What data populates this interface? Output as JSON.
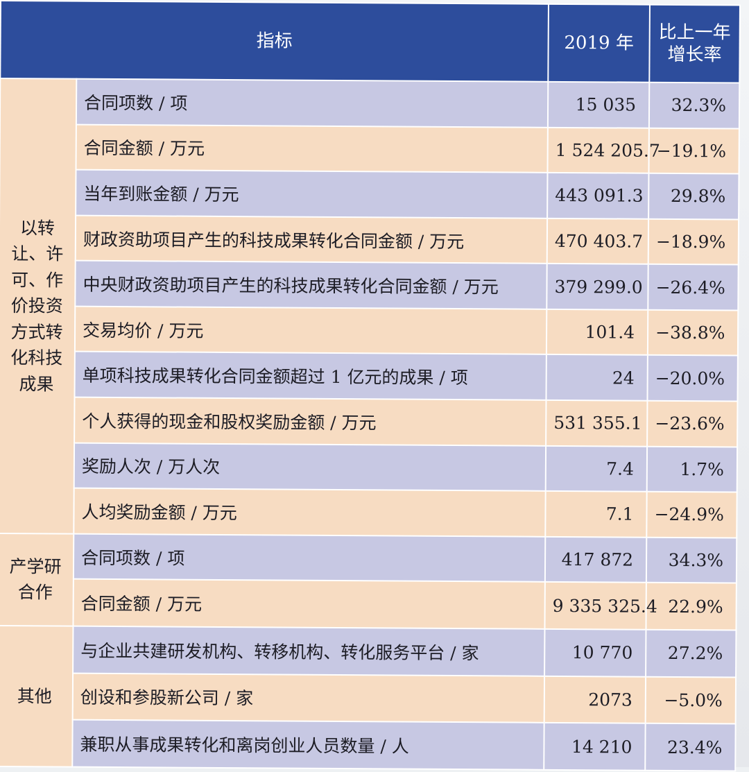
{
  "header": {
    "indicator": "指标",
    "year": "2019 年",
    "growth_line1": "比上一年",
    "growth_line2": "增长率"
  },
  "groups": [
    {
      "category": "以转让、许可、作价投资方式转化科技成果",
      "rows": [
        {
          "indicator": "合同项数 / 项",
          "value": "15 035",
          "growth": "32.3%"
        },
        {
          "indicator": "合同金额 / 万元",
          "value": "1 524 205.7",
          "growth": "−19.1%"
        },
        {
          "indicator": "当年到账金额 / 万元",
          "value": "443 091.3",
          "growth": "29.8%"
        },
        {
          "indicator": "财政资助项目产生的科技成果转化合同金额 / 万元",
          "value": "470 403.7",
          "growth": "−18.9%"
        },
        {
          "indicator": "中央财政资助项目产生的科技成果转化合同金额 / 万元",
          "value": "379 299.0",
          "growth": "−26.4%"
        },
        {
          "indicator": "交易均价 / 万元",
          "value": "101.4",
          "growth": "−38.8%"
        },
        {
          "indicator": "单项科技成果转化合同金额超过 1 亿元的成果 / 项",
          "value": "24",
          "growth": "−20.0%"
        },
        {
          "indicator": "个人获得的现金和股权奖励金额 / 万元",
          "value": "531 355.1",
          "growth": "−23.6%"
        },
        {
          "indicator": "奖励人次 / 万人次",
          "value": "7.4",
          "growth": "1.7%"
        },
        {
          "indicator": "人均奖励金额 / 万元",
          "value": "7.1",
          "growth": "−24.9%"
        }
      ]
    },
    {
      "category": "产学研合作",
      "rows": [
        {
          "indicator": "合同项数 / 项",
          "value": "417 872",
          "growth": "34.3%"
        },
        {
          "indicator": "合同金额 / 万元",
          "value": "9 335 325.4",
          "growth": "22.9%"
        }
      ]
    },
    {
      "category": "其他",
      "rows": [
        {
          "indicator": "与企业共建研发机构、转移机构、转化服务平台 / 家",
          "value": "10 770",
          "growth": "27.2%"
        },
        {
          "indicator": "创设和参股新公司 / 家",
          "value": "2073",
          "growth": "−5.0%"
        },
        {
          "indicator": "兼职从事成果转化和离岗创业人员数量 / 人",
          "value": "14 210",
          "growth": "23.4%"
        }
      ]
    }
  ]
}
